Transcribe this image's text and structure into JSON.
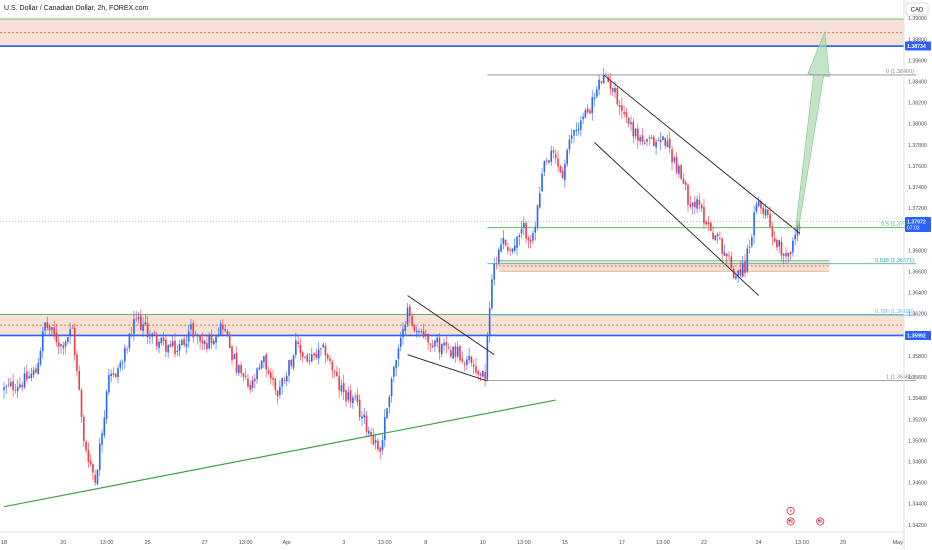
{
  "header": {
    "symbol_title": "U.S. Dollar / Canadian Dollar, 2h, FOREX.com",
    "currency_button": "CAD"
  },
  "colors": {
    "up": "#2962ff",
    "down": "#f23645",
    "zone_fill": "#f4d6c6",
    "zone_border": "#4caf50",
    "blue_line": "#2962ff",
    "trendline_green": "#43a047",
    "arrow_fill": "#a5d6a7",
    "fib_gray": "#888888",
    "fib_green": "#4caf50",
    "fib_teal": "#26a69a",
    "fib_blue": "#64b5f6"
  },
  "chart_data": {
    "type": "candlestick",
    "title": "U.S. Dollar / Canadian Dollar, 2h, FOREX.com",
    "y_ticks": [
      "1.39000",
      "1.38800",
      "1.38600",
      "1.38400",
      "1.38200",
      "1.38000",
      "1.37800",
      "1.37600",
      "1.37400",
      "1.37200",
      "1.37000",
      "1.36800",
      "1.36600",
      "1.36400",
      "1.36200",
      "1.36000",
      "1.35800",
      "1.35600",
      "1.35400",
      "1.35200",
      "1.35000",
      "1.34800",
      "1.34600",
      "1.34400",
      "1.34200"
    ],
    "ylim": [
      1.3413,
      1.3917
    ],
    "x_ticks": [
      {
        "label": "18",
        "i": 0
      },
      {
        "label": "20",
        "i": 26
      },
      {
        "label": "13:00",
        "i": 45
      },
      {
        "label": "25",
        "i": 63
      },
      {
        "label": "27",
        "i": 88
      },
      {
        "label": "13:00",
        "i": 106
      },
      {
        "label": "Apr",
        "i": 124
      },
      {
        "label": "3",
        "i": 149
      },
      {
        "label": "13:00",
        "i": 167
      },
      {
        "label": "8",
        "i": 185
      },
      {
        "label": "10",
        "i": 210
      },
      {
        "label": "13:00",
        "i": 228
      },
      {
        "label": "15",
        "i": 246
      },
      {
        "label": "17",
        "i": 271
      },
      {
        "label": "13:00",
        "i": 289
      },
      {
        "label": "22",
        "i": 307
      },
      {
        "label": "24",
        "i": 331
      },
      {
        "label": "13:00",
        "i": 350
      },
      {
        "label": "29",
        "i": 368
      },
      {
        "label": "May",
        "i": 392
      }
    ],
    "price_labels": [
      {
        "text": "1.38734",
        "value": 1.38734,
        "color": "#2962ff"
      },
      {
        "text": "1.37072",
        "sub": "07:03",
        "value": 1.37072,
        "color": "#2962ff"
      },
      {
        "text": "1.35992",
        "value": 1.35992,
        "color": "#2962ff"
      }
    ],
    "zones": [
      {
        "top": 1.3899,
        "bottom": 1.3873,
        "mid": 1.3886
      },
      {
        "top": 1.3619,
        "bottom": 1.3599,
        "mid": 1.3609
      },
      {
        "top": 1.367,
        "bottom": 1.366,
        "mid": 1.3665,
        "i0": 217,
        "i1": 362
      }
    ],
    "horizontal_lines": [
      {
        "value": 1.38734,
        "kind": "blue"
      },
      {
        "value": 1.35992,
        "kind": "blue"
      },
      {
        "value": 1.37072,
        "kind": "price"
      }
    ],
    "fibonacci": [
      {
        "label": "0 (1.38460)",
        "value": 1.3846,
        "color": "#888888"
      },
      {
        "label": "0.5 (1.37013)",
        "value": 1.37013,
        "color": "#4caf50"
      },
      {
        "label": "0.618 (1.36671)",
        "value": 1.36671,
        "color": "#26a69a"
      },
      {
        "label": "0.786 (1.36185)",
        "value": 1.36185,
        "color": "#64b5f6"
      },
      {
        "label": "1 (1.35565)",
        "value": 1.35565,
        "color": "#888888"
      }
    ],
    "fib_range": {
      "i0": 212,
      "i1": 400
    },
    "trendlines": [
      {
        "kind": "green",
        "i0": 0,
        "v0": 1.3437,
        "i1": 242,
        "v1": 1.3538
      },
      {
        "kind": "black",
        "i0": 177,
        "v0": 1.3637,
        "i1": 215,
        "v1": 1.3581
      },
      {
        "kind": "black",
        "i0": 177,
        "v0": 1.3581,
        "i1": 212,
        "v1": 1.3556
      },
      {
        "kind": "black",
        "i0": 263,
        "v0": 1.3846,
        "i1": 349,
        "v1": 1.3696
      },
      {
        "kind": "black",
        "i0": 259,
        "v0": 1.3782,
        "i1": 331,
        "v1": 1.3637
      }
    ],
    "arrow": {
      "i_base": 348,
      "v_base": 1.3703,
      "i_tip": 360,
      "v_tip": 1.3887
    },
    "events": [
      {
        "icon": "lightning-icon",
        "i": 345,
        "v": 1.3433
      },
      {
        "icon": "us-flag-icon",
        "i": 345,
        "v": 1.3423
      },
      {
        "icon": "us-flag-icon",
        "i": 358,
        "v": 1.3423
      }
    ],
    "n_candles": 350,
    "anchors": [
      [
        0,
        1.3548
      ],
      [
        8,
        1.3555
      ],
      [
        14,
        1.3565
      ],
      [
        18,
        1.361
      ],
      [
        25,
        1.359
      ],
      [
        30,
        1.3605
      ],
      [
        35,
        1.35
      ],
      [
        40,
        1.3462
      ],
      [
        46,
        1.3555
      ],
      [
        52,
        1.3575
      ],
      [
        58,
        1.3615
      ],
      [
        65,
        1.3598
      ],
      [
        70,
        1.359
      ],
      [
        76,
        1.3585
      ],
      [
        82,
        1.3605
      ],
      [
        88,
        1.359
      ],
      [
        96,
        1.361
      ],
      [
        102,
        1.3568
      ],
      [
        108,
        1.3548
      ],
      [
        114,
        1.3575
      ],
      [
        120,
        1.3545
      ],
      [
        128,
        1.3588
      ],
      [
        134,
        1.3575
      ],
      [
        141,
        1.3585
      ],
      [
        147,
        1.355
      ],
      [
        154,
        1.3535
      ],
      [
        160,
        1.351
      ],
      [
        165,
        1.349
      ],
      [
        170,
        1.356
      ],
      [
        175,
        1.36
      ],
      [
        177,
        1.3632
      ],
      [
        180,
        1.3605
      ],
      [
        186,
        1.3598
      ],
      [
        192,
        1.3588
      ],
      [
        198,
        1.3585
      ],
      [
        204,
        1.3575
      ],
      [
        211,
        1.3558
      ],
      [
        213,
        1.363
      ],
      [
        215,
        1.3665
      ],
      [
        218,
        1.369
      ],
      [
        223,
        1.368
      ],
      [
        228,
        1.37
      ],
      [
        232,
        1.369
      ],
      [
        237,
        1.376
      ],
      [
        241,
        1.377
      ],
      [
        245,
        1.375
      ],
      [
        249,
        1.379
      ],
      [
        254,
        1.3805
      ],
      [
        258,
        1.382
      ],
      [
        262,
        1.3842
      ],
      [
        266,
        1.3838
      ],
      [
        272,
        1.381
      ],
      [
        277,
        1.379
      ],
      [
        282,
        1.378
      ],
      [
        290,
        1.3785
      ],
      [
        295,
        1.376
      ],
      [
        300,
        1.373
      ],
      [
        305,
        1.372
      ],
      [
        310,
        1.37
      ],
      [
        316,
        1.368
      ],
      [
        320,
        1.3658
      ],
      [
        325,
        1.3665
      ],
      [
        330,
        1.372
      ],
      [
        334,
        1.372
      ],
      [
        338,
        1.369
      ],
      [
        342,
        1.3678
      ],
      [
        345,
        1.368
      ],
      [
        349,
        1.3707
      ]
    ]
  }
}
